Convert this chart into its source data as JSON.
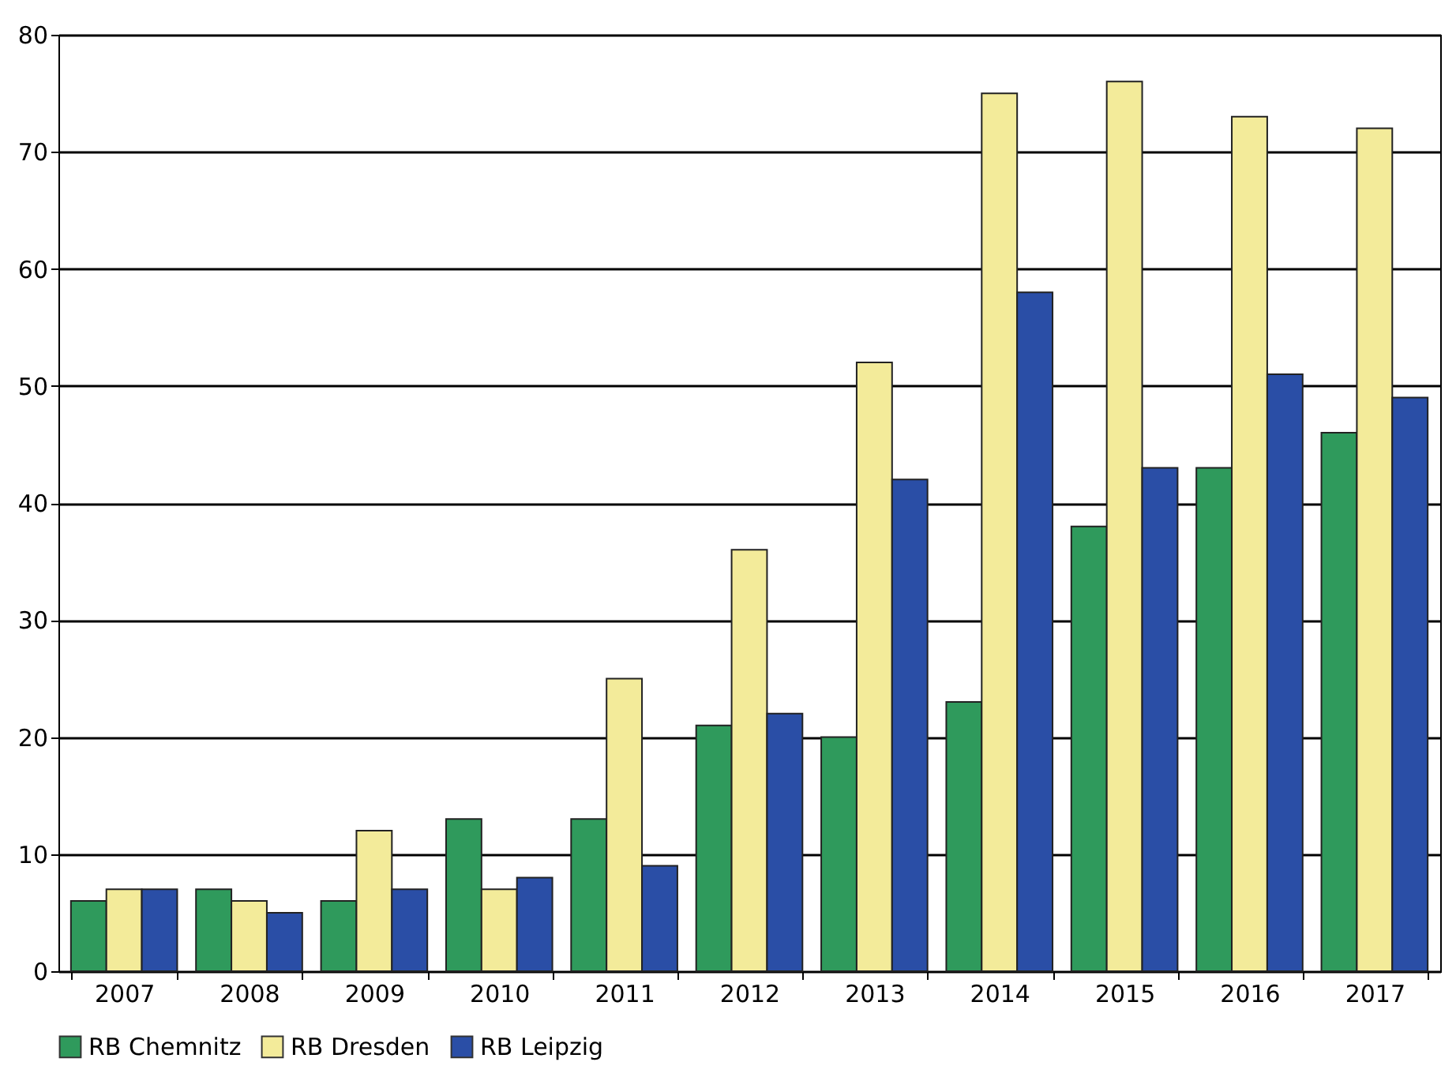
{
  "chart_data": {
    "type": "bar",
    "categories": [
      "2007",
      "2008",
      "2009",
      "2010",
      "2011",
      "2012",
      "2013",
      "2014",
      "2015",
      "2016",
      "2017"
    ],
    "series": [
      {
        "name": "RB Chemnitz",
        "color": "#2f9a5c",
        "values": [
          6,
          7,
          6,
          13,
          13,
          21,
          20,
          23,
          38,
          43,
          46
        ]
      },
      {
        "name": "RB Dresden",
        "color": "#f3eb9a",
        "values": [
          7,
          6,
          12,
          7,
          25,
          36,
          52,
          75,
          76,
          73,
          72
        ]
      },
      {
        "name": "RB Leipzig",
        "color": "#2a4ea6",
        "values": [
          7,
          5,
          7,
          8,
          9,
          22,
          42,
          58,
          43,
          51,
          49
        ]
      }
    ],
    "ylim": [
      0,
      80
    ],
    "yticks": [
      0,
      10,
      20,
      30,
      40,
      50,
      60,
      70,
      80
    ],
    "grid": "y",
    "legend": "bottom"
  }
}
